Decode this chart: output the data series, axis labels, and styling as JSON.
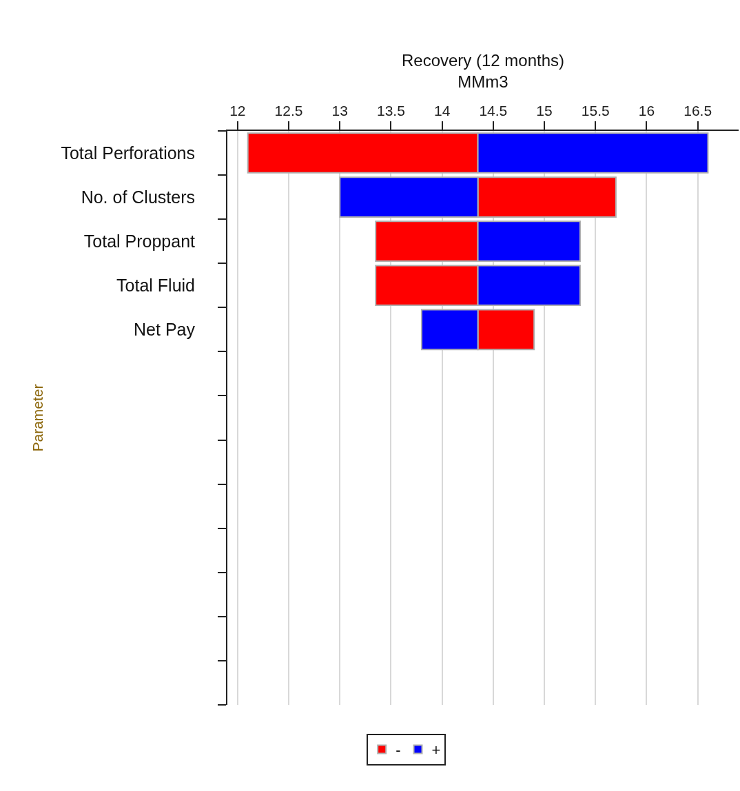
{
  "chart_data": {
    "type": "bar",
    "orientation": "horizontal",
    "xlabel": "Recovery (12 months)\nMMm3",
    "ylabel": "Parameter",
    "categories": [
      "Total Perforations",
      "No. of Clusters",
      "Total Proppant",
      "Total Fluid",
      "Net Pay",
      null,
      null,
      null,
      null,
      null,
      null,
      null,
      null
    ],
    "series": [
      {
        "name": "-",
        "color": "#ff0000",
        "base": [
          14.35,
          14.35,
          14.35,
          14.35,
          14.35,
          null,
          null,
          null,
          null,
          null,
          null,
          null,
          null
        ],
        "values": [
          -2.25,
          1.35,
          -1.0,
          -1.0,
          0.55,
          null,
          null,
          null,
          null,
          null,
          null,
          null,
          null
        ]
      },
      {
        "name": "+",
        "color": "#0000ff",
        "base": [
          14.35,
          14.35,
          14.35,
          14.35,
          14.35,
          null,
          null,
          null,
          null,
          null,
          null,
          null,
          null
        ],
        "values": [
          2.25,
          -1.35,
          1.0,
          1.0,
          -0.55,
          null,
          null,
          null,
          null,
          null,
          null,
          null,
          null
        ]
      }
    ],
    "xlim": [
      11.9,
      16.9
    ],
    "xticks": [
      12,
      12.5,
      13,
      13.5,
      14,
      14.5,
      15,
      15.5,
      16,
      16.5
    ],
    "grid": "x",
    "legend": "bottom"
  }
}
